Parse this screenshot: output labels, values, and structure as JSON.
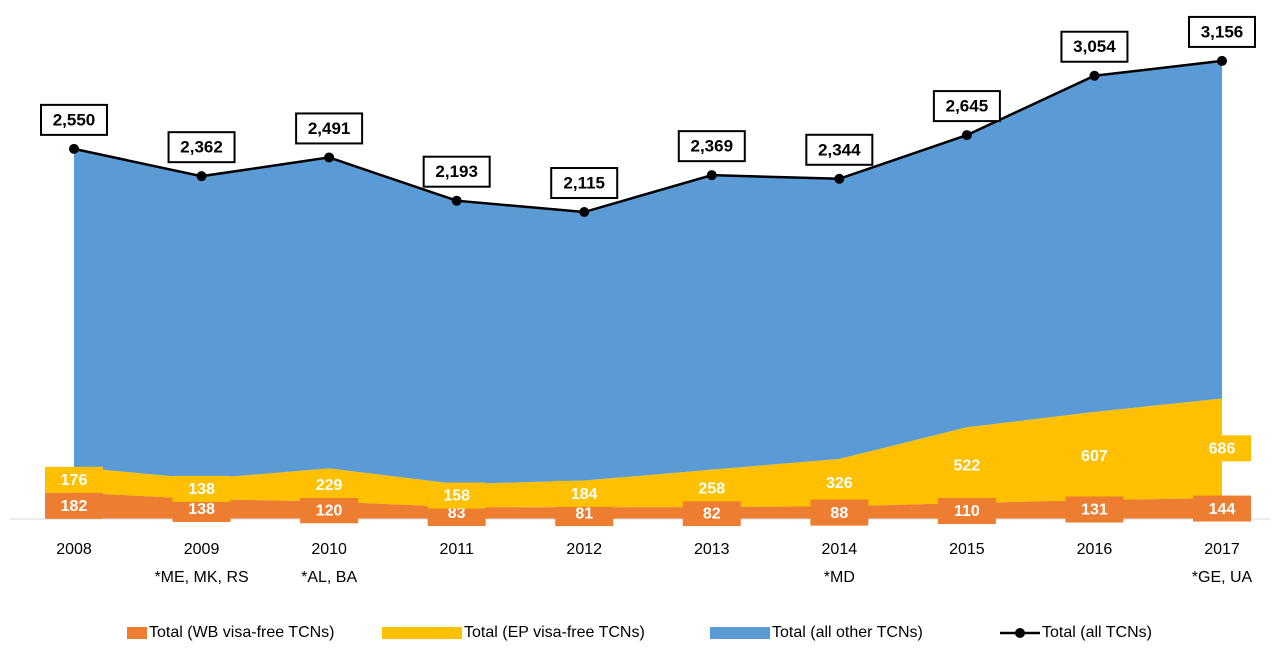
{
  "chart_data": {
    "type": "stacked-area-line",
    "categories": [
      "2008",
      "2009",
      "2010",
      "2011",
      "2012",
      "2013",
      "2014",
      "2015",
      "2016",
      "2017"
    ],
    "category_notes": [
      null,
      "*ME, MK, RS",
      "*AL, BA",
      null,
      null,
      null,
      "*MD",
      null,
      null,
      "*GE, UA"
    ],
    "ylim": [
      0,
      3500
    ],
    "series": [
      {
        "name": "Total (WB visa-free TCNs)",
        "color": "#ED7D31",
        "kind": "area",
        "values": [
          182,
          138,
          120,
          83,
          81,
          82,
          88,
          110,
          131,
          144
        ]
      },
      {
        "name": "Total (EP visa-free TCNs)",
        "color": "#FFC000",
        "kind": "area",
        "values": [
          176,
          138,
          229,
          158,
          184,
          258,
          326,
          522,
          607,
          686
        ]
      },
      {
        "name": "Total (all other TCNs)",
        "color": "#5B9BD5",
        "kind": "area",
        "values": [
          2192,
          2086,
          2142,
          1952,
          1850,
          2029,
          1930,
          2013,
          2316,
          2326
        ]
      },
      {
        "name": "Total (all TCNs)",
        "color": "#000000",
        "kind": "line",
        "values": [
          2550,
          2362,
          2491,
          2193,
          2115,
          2369,
          2344,
          2645,
          3054,
          3156
        ],
        "value_labels": [
          "2,550",
          "2,362",
          "2,491",
          "2,193",
          "2,115",
          "2,369",
          "2,344",
          "2,645",
          "3,054",
          "3,156"
        ]
      }
    ]
  }
}
